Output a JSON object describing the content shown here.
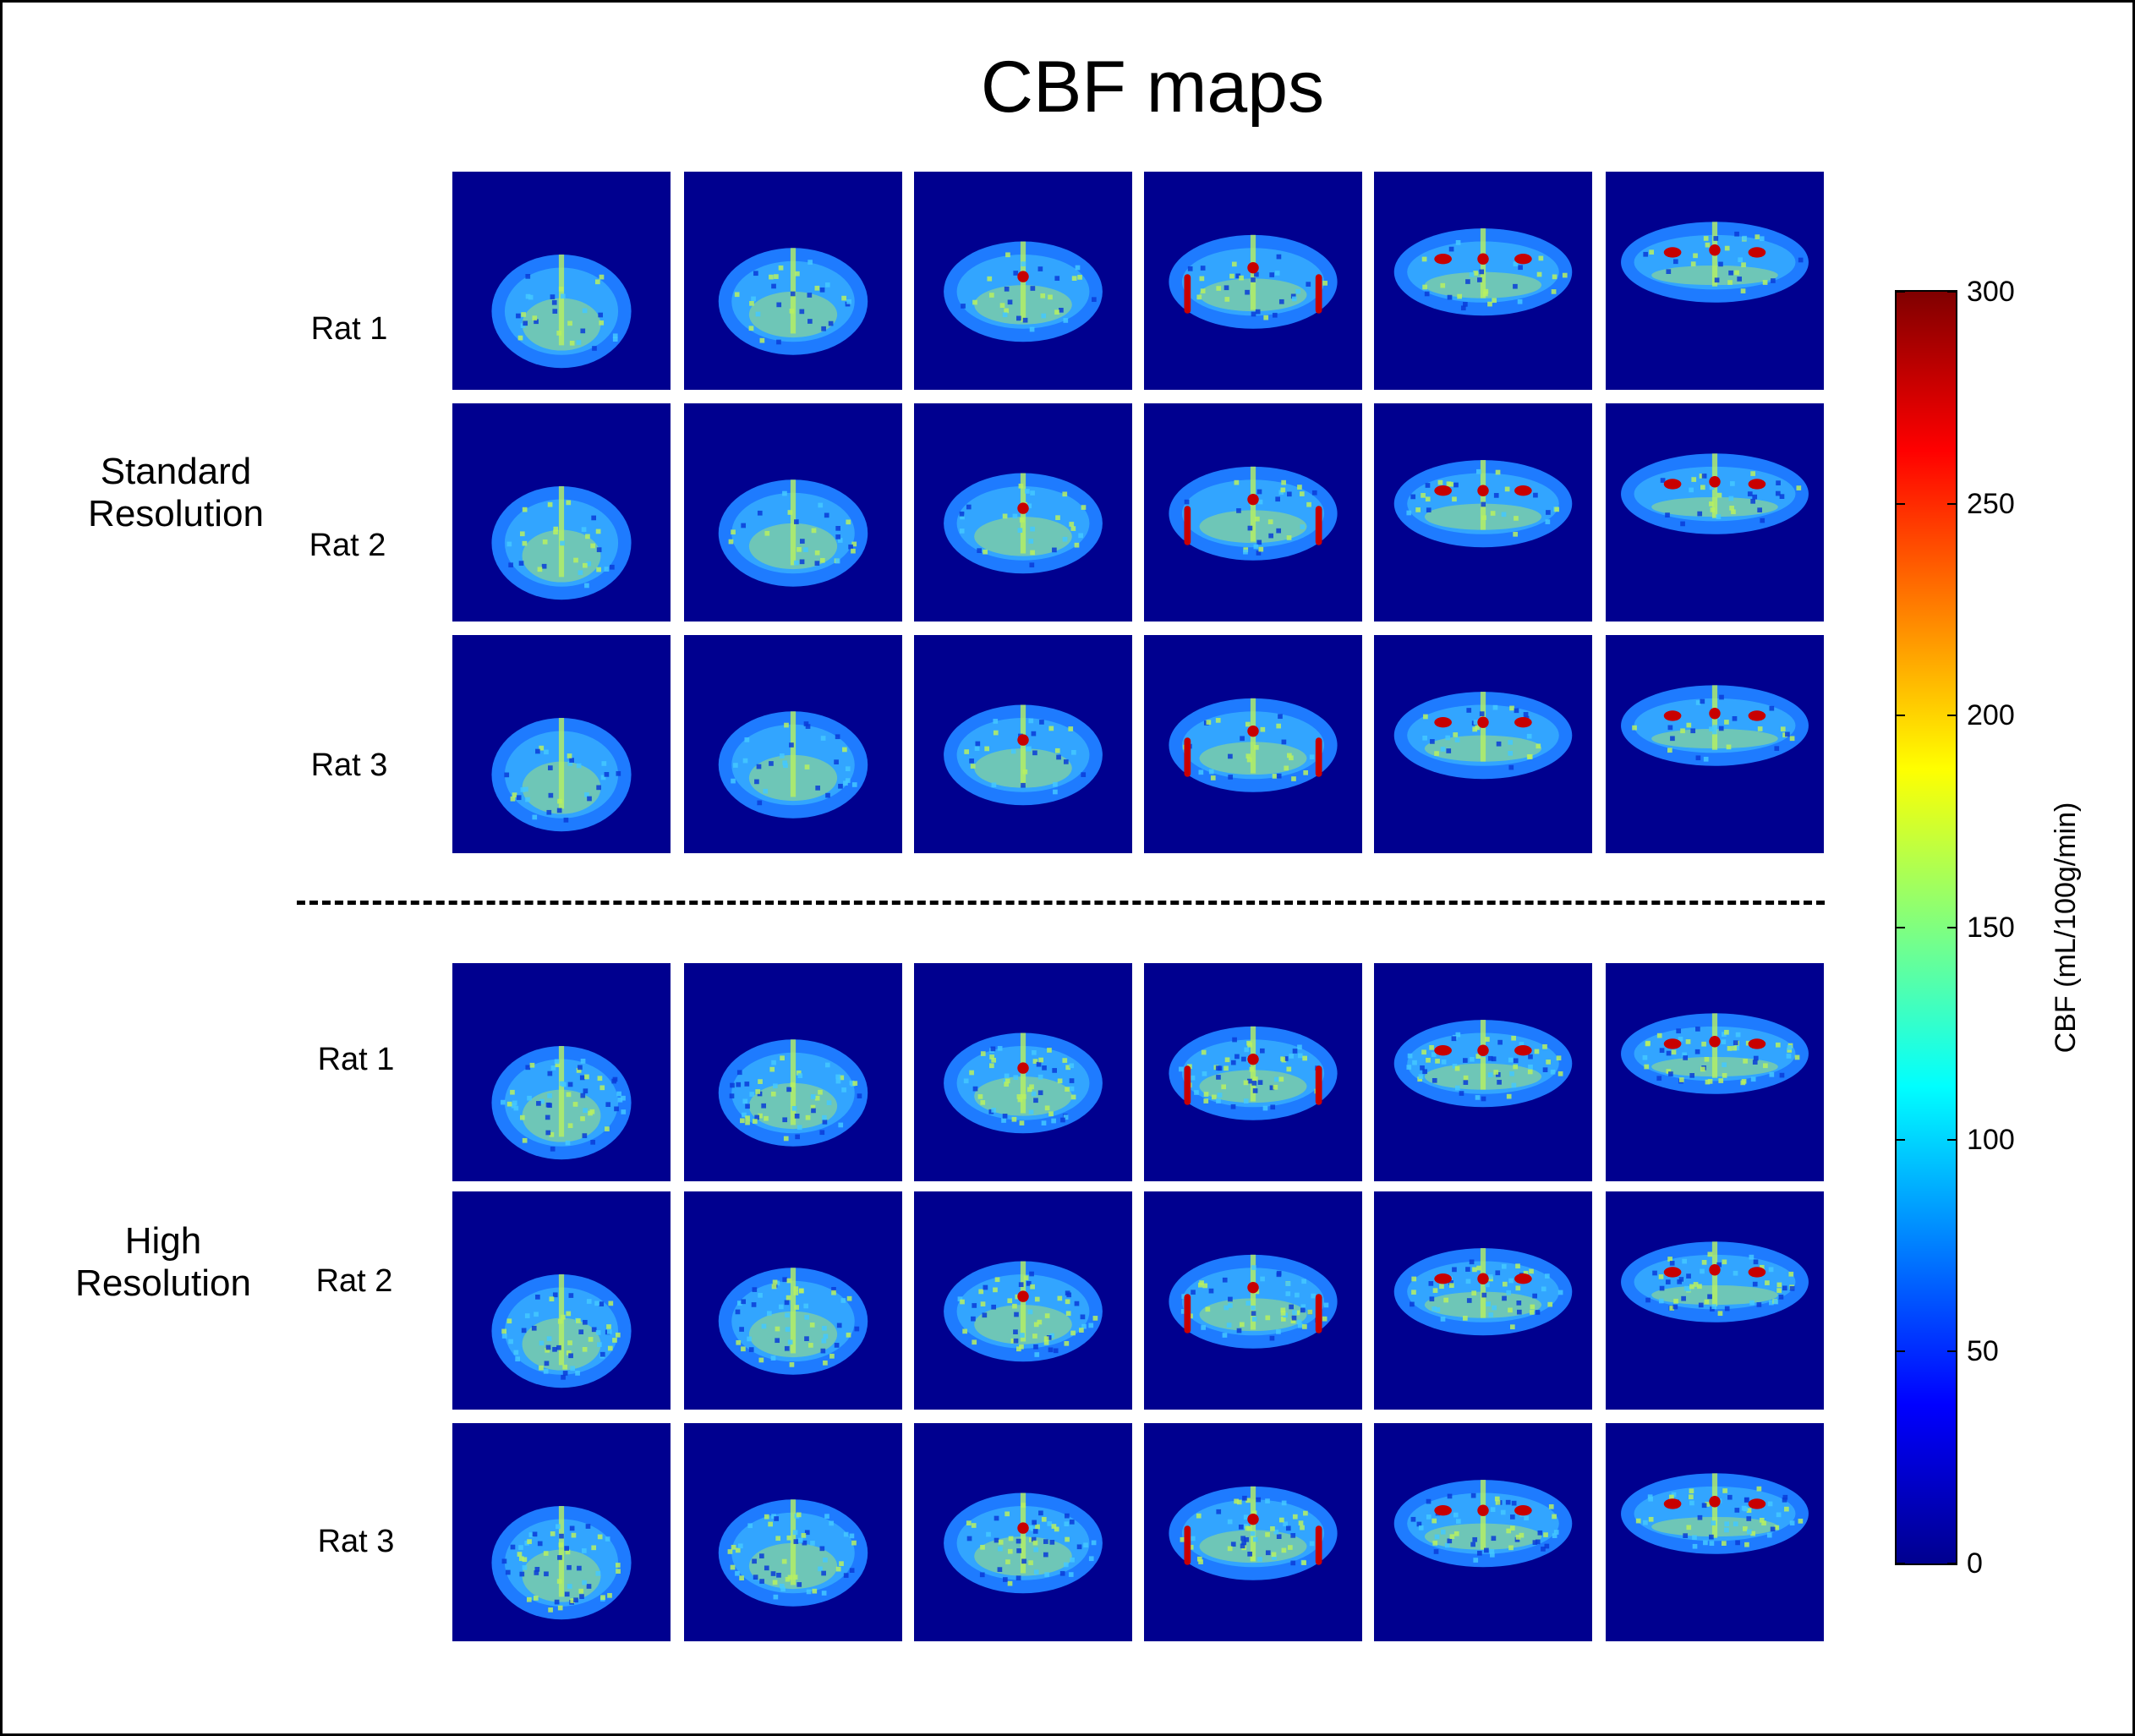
{
  "figure": {
    "title": "CBF maps"
  },
  "groups": [
    {
      "label_line1": "Standard",
      "label_line2": "Resolution",
      "rows": [
        "Rat 1",
        "Rat 2",
        "Rat 3"
      ]
    },
    {
      "label_line1": "High",
      "label_line2": "Resolution",
      "rows": [
        "Rat 1",
        "Rat 2",
        "Rat 3"
      ]
    }
  ],
  "slices_per_row": 6,
  "colorbar": {
    "title": "CBF (mL/100g/min)",
    "ticks": [
      "0",
      "50",
      "100",
      "150",
      "200",
      "250",
      "300"
    ],
    "range": [
      0,
      300
    ],
    "colormap": "jet",
    "colors": {
      "low": "#00008f",
      "mid_low": "#0000ff",
      "cyan": "#00ffff",
      "yellow": "#ffff00",
      "red": "#ff0000",
      "high": "#800000"
    }
  },
  "palette": {
    "background": "#00008f",
    "tissue_base": "#1e7bff",
    "tissue_light": "#44c8ff",
    "tissue_warm": "#b8f060",
    "hot": "#c80000"
  }
}
